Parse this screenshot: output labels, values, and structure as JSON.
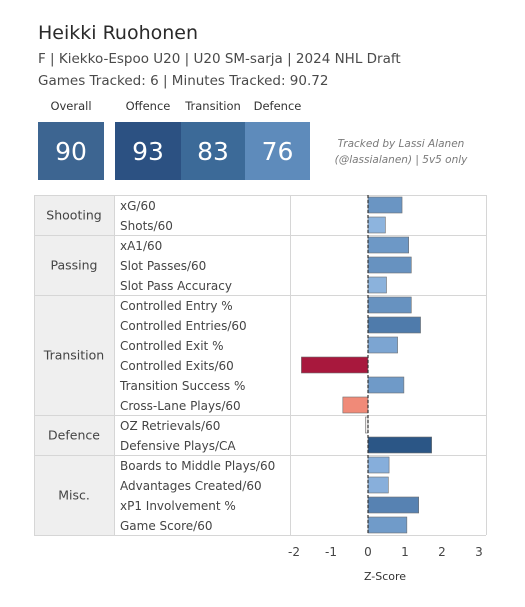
{
  "header": {
    "name": "Heikki Ruohonen",
    "subtitle": "F | Kiekko-Espoo U20 | U20 SM-sarja | 2024 NHL Draft",
    "games": "Games Tracked: 6 | Minutes Tracked: 90.72"
  },
  "scores": [
    {
      "label": "Overall",
      "value": "90",
      "color": "#3d6591"
    },
    {
      "label": "Offence",
      "value": "93",
      "color": "#2c5182"
    },
    {
      "label": "Transition",
      "value": "83",
      "color": "#3c6a98"
    },
    {
      "label": "Defence",
      "value": "76",
      "color": "#5e8bbb"
    }
  ],
  "credit": {
    "line1": "Tracked by Lassi Alanen",
    "line2": "(@lassialanen) | 5v5 only"
  },
  "chart_data": {
    "type": "bar",
    "orientation": "horizontal",
    "xlabel": "Z-Score",
    "xlim": [
      -2.0,
      3.0
    ],
    "xticks": [
      "-2",
      "-1",
      "0",
      "1",
      "2",
      "3"
    ],
    "xtick_values": [
      -2,
      -1,
      0,
      1,
      2,
      3
    ],
    "zero_line": "dashed",
    "groups": [
      {
        "name": "Shooting",
        "metrics": [
          {
            "label": "xG/60",
            "value": 0.92,
            "color": "#6a95c3"
          },
          {
            "label": "Shots/60",
            "value": 0.47,
            "color": "#8db4de"
          }
        ]
      },
      {
        "name": "Passing",
        "metrics": [
          {
            "label": "xA1/60",
            "value": 1.1,
            "color": "#6d98c6"
          },
          {
            "label": "Slot Passes/60",
            "value": 1.17,
            "color": "#6792c0"
          },
          {
            "label": "Slot Pass Accuracy",
            "value": 0.5,
            "color": "#8bb2dc"
          }
        ]
      },
      {
        "name": "Transition",
        "metrics": [
          {
            "label": "Controlled Entry %",
            "value": 1.17,
            "color": "#6792c0"
          },
          {
            "label": "Controlled Entries/60",
            "value": 1.42,
            "color": "#4f7bab"
          },
          {
            "label": "Controlled Exit %",
            "value": 0.8,
            "color": "#7ca5d2"
          },
          {
            "label": "Controlled Exits/60",
            "value": -1.8,
            "color": "#a8183d"
          },
          {
            "label": "Transition Success %",
            "value": 0.97,
            "color": "#6f9ac8"
          },
          {
            "label": "Cross-Lane Plays/60",
            "value": -0.68,
            "color": "#f08a78"
          }
        ]
      },
      {
        "name": "Defence",
        "metrics": [
          {
            "label": "OZ Retrievals/60",
            "value": -0.07,
            "color": "#f3f0ef"
          },
          {
            "label": "Defensive Plays/CA",
            "value": 1.72,
            "color": "#2b5686"
          }
        ]
      },
      {
        "name": "Misc.",
        "metrics": [
          {
            "label": "Boards to Middle Plays/60",
            "value": 0.57,
            "color": "#86aedb"
          },
          {
            "label": "Advantages Created/60",
            "value": 0.55,
            "color": "#88afdb"
          },
          {
            "label": "xP1 Involvement %",
            "value": 1.37,
            "color": "#5782b2"
          },
          {
            "label": "Game Score/60",
            "value": 1.05,
            "color": "#709bc9"
          }
        ]
      }
    ]
  }
}
